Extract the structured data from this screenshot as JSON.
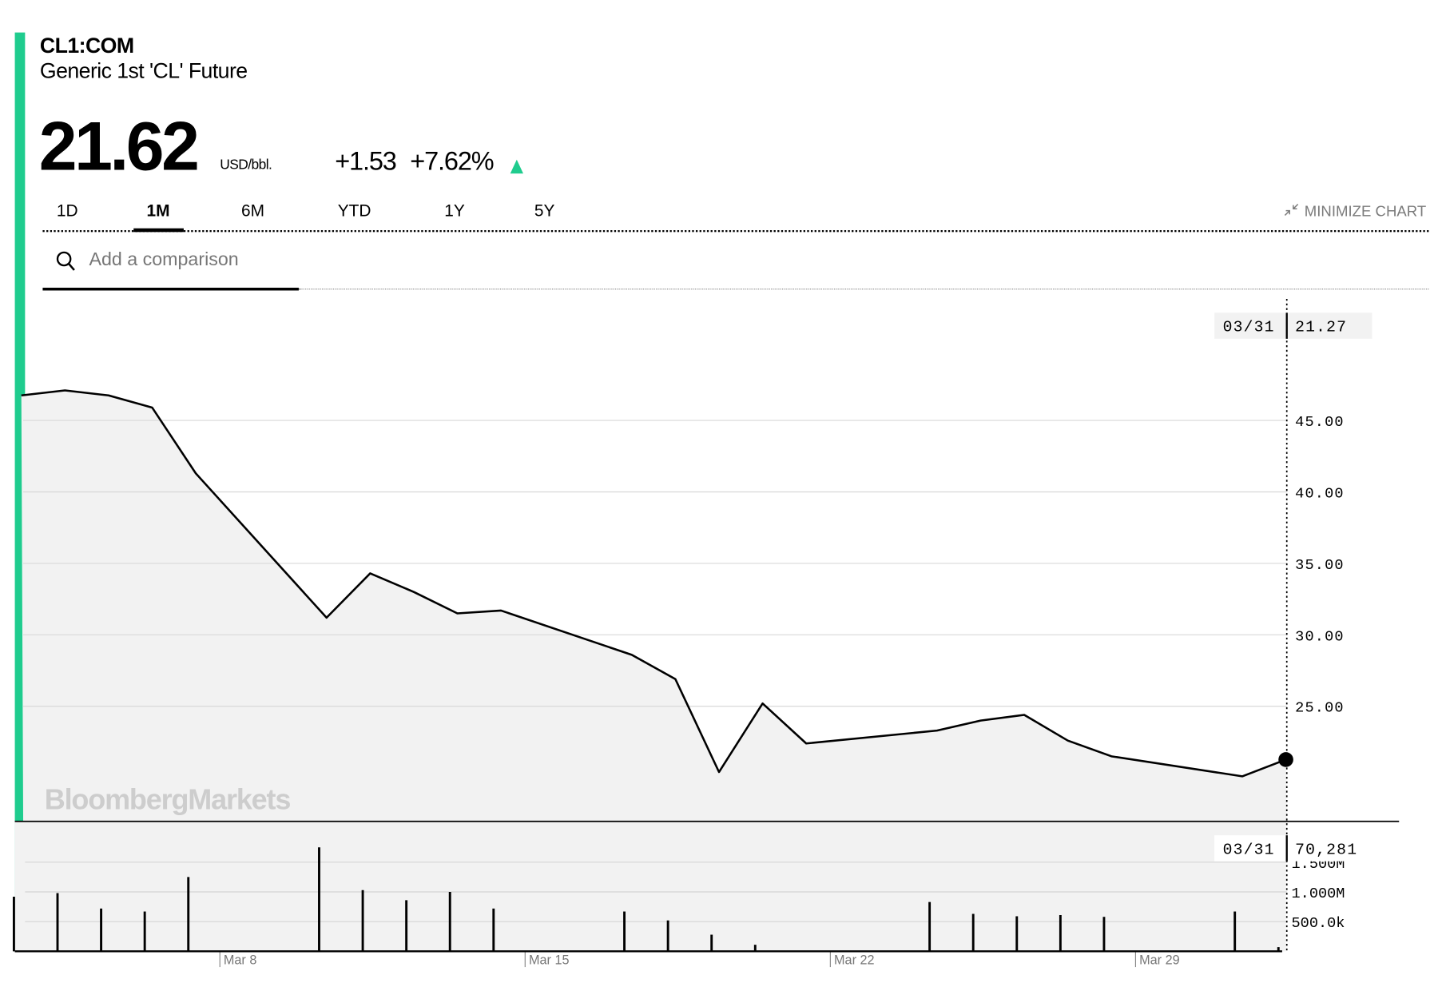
{
  "header": {
    "ticker": "CL1:COM",
    "name": "Generic 1st 'CL' Future",
    "price": "21.62",
    "unit": "USD/bbl.",
    "change": "+1.53",
    "change_pct": "+7.62%",
    "direction_icon": "triangle-up-icon",
    "up_color": "#1fcc8e"
  },
  "tabs": [
    {
      "label": "1D",
      "active": false
    },
    {
      "label": "1M",
      "active": true
    },
    {
      "label": "6M",
      "active": false
    },
    {
      "label": "YTD",
      "active": false
    },
    {
      "label": "1Y",
      "active": false
    },
    {
      "label": "5Y",
      "active": false
    }
  ],
  "minimize": {
    "label": "MINIMIZE CHART",
    "icon": "minimize-arrows-icon"
  },
  "search": {
    "placeholder": "Add a comparison",
    "value": "",
    "icon": "search-icon"
  },
  "watermark": "BloombergMarkets",
  "chart_data": [
    {
      "type": "area",
      "xlabel": "",
      "ylabel": "",
      "x_ticks": [
        "Mar 8",
        "Mar 15",
        "Mar 22",
        "Mar 29"
      ],
      "y_ticks": [
        "45.00",
        "40.00",
        "35.00",
        "30.00",
        "25.00"
      ],
      "y_tick_values": [
        45,
        40,
        35,
        30,
        25
      ],
      "grid": true,
      "line_color": "#000000",
      "fill_color": "#f2f2f2",
      "x": [
        "Mar 2",
        "Mar 3",
        "Mar 4",
        "Mar 5",
        "Mar 6",
        "Mar 9",
        "Mar 10",
        "Mar 11",
        "Mar 12",
        "Mar 13",
        "Mar 16",
        "Mar 17",
        "Mar 18",
        "Mar 19",
        "Mar 20",
        "Mar 23",
        "Mar 24",
        "Mar 25",
        "Mar 26",
        "Mar 27",
        "Mar 30",
        "Mar 31"
      ],
      "values": [
        46.75,
        47.1,
        46.75,
        45.9,
        41.3,
        31.2,
        34.3,
        33.0,
        31.5,
        31.7,
        28.6,
        26.9,
        20.4,
        25.2,
        22.4,
        23.3,
        24.0,
        24.4,
        22.6,
        21.5,
        20.1,
        21.27
      ],
      "crosshair": {
        "date": "03/31",
        "value": "21.27"
      }
    },
    {
      "type": "bar",
      "y_ticks": [
        "1.500M",
        "1.000M",
        "500.0k"
      ],
      "y_tick_values": [
        1500000,
        1000000,
        500000
      ],
      "grid": true,
      "x": [
        "Mar 2",
        "Mar 3",
        "Mar 4",
        "Mar 5",
        "Mar 6",
        "Mar 9",
        "Mar 10",
        "Mar 11",
        "Mar 12",
        "Mar 13",
        "Mar 16",
        "Mar 17",
        "Mar 18",
        "Mar 19",
        "Mar 23",
        "Mar 24",
        "Mar 25",
        "Mar 26",
        "Mar 27",
        "Mar 30",
        "Mar 31"
      ],
      "values": [
        920000,
        980000,
        720000,
        670000,
        1250000,
        1750000,
        1030000,
        860000,
        1000000,
        720000,
        670000,
        520000,
        280000,
        110000,
        830000,
        630000,
        590000,
        610000,
        580000,
        670000,
        70281
      ],
      "crosshair": {
        "date": "03/31",
        "value": "70,281"
      }
    }
  ]
}
